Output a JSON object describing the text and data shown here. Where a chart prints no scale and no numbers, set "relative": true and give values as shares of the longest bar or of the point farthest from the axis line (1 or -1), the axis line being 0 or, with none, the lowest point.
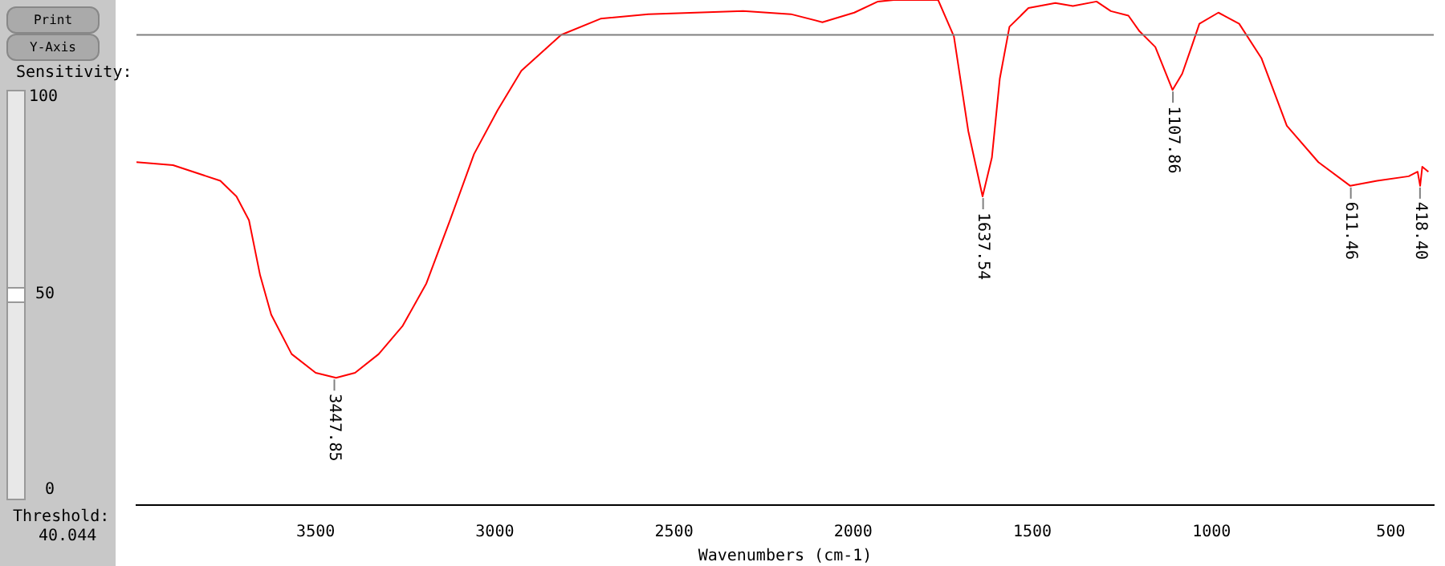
{
  "chart_data": {
    "type": "line",
    "relative": true,
    "xlabel": "Wavenumbers (cm-1)",
    "xlim": [
      4000,
      380
    ],
    "xticks": [
      3500,
      3000,
      2500,
      2000,
      1500,
      1000,
      500
    ],
    "tick_labels": "x",
    "grid": false,
    "legend": false,
    "marker": "none",
    "line_style": "solid",
    "x": [
      4000,
      3898,
      3766,
      3721,
      3686,
      3655,
      3624,
      3567,
      3500,
      3443,
      3390,
      3324,
      3257,
      3191,
      3125,
      3058,
      2992,
      2926,
      2815,
      2705,
      2572,
      2439,
      2307,
      2174,
      2086,
      1997,
      1931,
      1887,
      1763,
      1719,
      1679,
      1639,
      1613,
      1591,
      1564,
      1511,
      1436,
      1387,
      1321,
      1281,
      1232,
      1201,
      1157,
      1109,
      1082,
      1056,
      1034,
      981,
      923,
      861,
      790,
      702,
      613,
      538,
      450,
      425,
      418,
      412,
      395
    ],
    "series": [
      {
        "color": "#ff0000",
        "values": [
          0.679,
          0.673,
          0.642,
          0.611,
          0.564,
          0.455,
          0.377,
          0.299,
          0.262,
          0.252,
          0.262,
          0.299,
          0.355,
          0.439,
          0.564,
          0.695,
          0.782,
          0.86,
          0.931,
          0.963,
          0.972,
          0.975,
          0.978,
          0.972,
          0.956,
          0.975,
          0.997,
          1,
          1,
          0.928,
          0.741,
          0.611,
          0.688,
          0.844,
          0.947,
          0.984,
          0.994,
          0.988,
          0.997,
          0.978,
          0.969,
          0.938,
          0.907,
          0.822,
          0.854,
          0.907,
          0.953,
          0.975,
          0.953,
          0.885,
          0.751,
          0.679,
          0.632,
          0.642,
          0.651,
          0.66,
          0.632,
          0.67,
          0.66
        ]
      }
    ],
    "ref_lines": [
      {
        "axis": "y",
        "value": 0.931,
        "color": "#808080"
      }
    ],
    "annotations": [
      "Print",
      "Y-Axis",
      "Sensitivity:",
      "100",
      "50",
      "0",
      "Threshold:",
      "40.044",
      {
        "text": "3447.85",
        "x": 3447.85,
        "y": 0.252
      },
      {
        "text": "1637.54",
        "x": 1637.54,
        "y": 0.611
      },
      {
        "text": "1107.86",
        "x": 1107.86,
        "y": 0.822
      },
      {
        "text": "611.46",
        "x": 611.46,
        "y": 0.632
      },
      {
        "text": "418.40",
        "x": 418.4,
        "y": 0.632
      }
    ]
  }
}
